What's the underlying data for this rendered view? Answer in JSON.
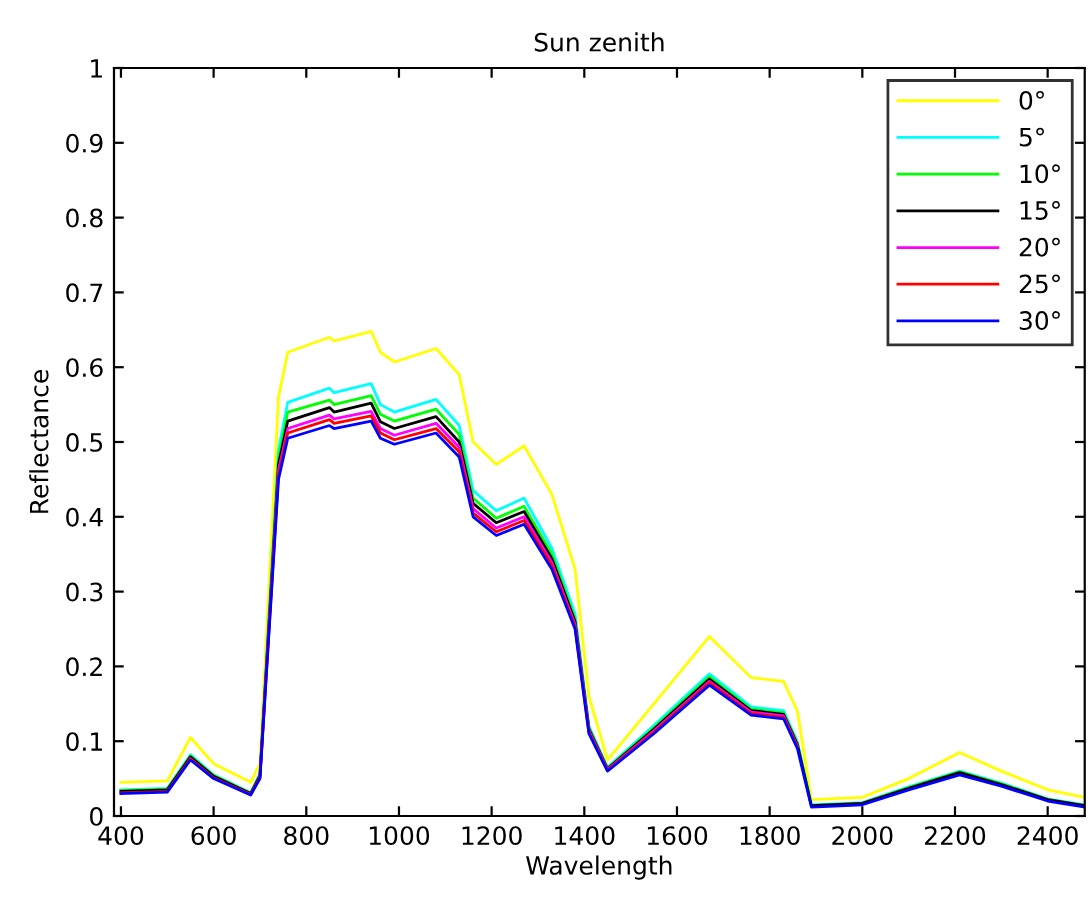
{
  "chart_data": {
    "type": "line",
    "title": "Sun zenith",
    "xlabel": "Wavelength",
    "ylabel": "Reflectance",
    "x": [
      400,
      500,
      550,
      600,
      680,
      700,
      740,
      760,
      850,
      860,
      940,
      960,
      990,
      1080,
      1130,
      1160,
      1210,
      1270,
      1330,
      1380,
      1410,
      1450,
      1550,
      1670,
      1760,
      1830,
      1860,
      1890,
      2000,
      2100,
      2210,
      2300,
      2400,
      2480
    ],
    "xlim": [
      385,
      2480
    ],
    "xticks": [
      400,
      600,
      800,
      1000,
      1200,
      1400,
      1600,
      1800,
      2000,
      2200,
      2400
    ],
    "ylim": [
      0,
      1
    ],
    "yticks": [
      0,
      0.1,
      0.2,
      0.3,
      0.4,
      0.5,
      0.6,
      0.7,
      0.8,
      0.9,
      1
    ],
    "grid": false,
    "legend": "top right",
    "marker": "none",
    "line_style": "solid",
    "series": [
      {
        "name": "0°",
        "color": "#ffff00",
        "values": [
          0.045,
          0.047,
          0.105,
          0.07,
          0.045,
          0.07,
          0.56,
          0.62,
          0.64,
          0.635,
          0.648,
          0.62,
          0.607,
          0.625,
          0.59,
          0.5,
          0.47,
          0.495,
          0.43,
          0.33,
          0.16,
          0.075,
          0.15,
          0.24,
          0.185,
          0.18,
          0.14,
          0.022,
          0.025,
          0.05,
          0.085,
          0.06,
          0.035,
          0.025
        ]
      },
      {
        "name": "5°",
        "color": "#00ffff",
        "values": [
          0.035,
          0.037,
          0.082,
          0.055,
          0.031,
          0.057,
          0.49,
          0.553,
          0.572,
          0.566,
          0.578,
          0.55,
          0.54,
          0.557,
          0.522,
          0.435,
          0.408,
          0.425,
          0.358,
          0.27,
          0.12,
          0.065,
          0.121,
          0.19,
          0.146,
          0.141,
          0.099,
          0.015,
          0.018,
          0.039,
          0.06,
          0.044,
          0.023,
          0.015
        ]
      },
      {
        "name": "10°",
        "color": "#00ff00",
        "values": [
          0.034,
          0.036,
          0.08,
          0.054,
          0.03,
          0.055,
          0.478,
          0.54,
          0.556,
          0.55,
          0.562,
          0.537,
          0.528,
          0.544,
          0.51,
          0.425,
          0.398,
          0.414,
          0.35,
          0.264,
          0.118,
          0.064,
          0.118,
          0.186,
          0.143,
          0.138,
          0.097,
          0.014,
          0.017,
          0.038,
          0.059,
          0.043,
          0.022,
          0.014
        ]
      },
      {
        "name": "15°",
        "color": "#000000",
        "values": [
          0.033,
          0.035,
          0.079,
          0.053,
          0.03,
          0.054,
          0.47,
          0.528,
          0.546,
          0.54,
          0.552,
          0.527,
          0.518,
          0.534,
          0.5,
          0.418,
          0.392,
          0.407,
          0.344,
          0.26,
          0.116,
          0.063,
          0.116,
          0.183,
          0.141,
          0.136,
          0.095,
          0.014,
          0.017,
          0.037,
          0.058,
          0.042,
          0.022,
          0.014
        ]
      },
      {
        "name": "20°",
        "color": "#ff00ff",
        "values": [
          null,
          null,
          null,
          null,
          null,
          0.053,
          0.462,
          0.518,
          0.536,
          0.531,
          0.541,
          0.518,
          0.509,
          0.525,
          0.493,
          0.411,
          0.385,
          0.4,
          0.339,
          0.256,
          0.114,
          0.062,
          0.114,
          0.18,
          0.139,
          0.134,
          0.093,
          null,
          null,
          null,
          null,
          null,
          null,
          null
        ]
      },
      {
        "name": "25°",
        "color": "#ff0000",
        "values": [
          0.031,
          0.033,
          0.077,
          0.051,
          0.029,
          0.052,
          0.456,
          0.512,
          0.53,
          0.525,
          0.535,
          0.512,
          0.503,
          0.518,
          0.487,
          0.405,
          0.38,
          0.395,
          0.335,
          0.253,
          0.112,
          0.061,
          0.112,
          0.178,
          0.137,
          0.132,
          0.092,
          null,
          null,
          null,
          null,
          null,
          null,
          null
        ]
      },
      {
        "name": "30°",
        "color": "#0000ff",
        "values": [
          0.03,
          0.032,
          0.075,
          0.05,
          0.028,
          0.05,
          0.45,
          0.505,
          0.522,
          0.518,
          0.528,
          0.505,
          0.497,
          0.512,
          0.48,
          0.4,
          0.375,
          0.39,
          0.33,
          0.25,
          0.11,
          0.06,
          0.11,
          0.175,
          0.135,
          0.13,
          0.09,
          0.012,
          0.015,
          0.035,
          0.055,
          0.04,
          0.02,
          0.012
        ]
      }
    ]
  }
}
